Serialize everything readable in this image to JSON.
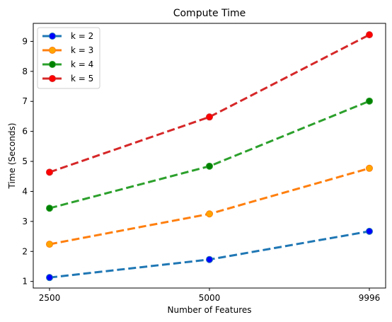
{
  "chart_data": {
    "type": "line",
    "title": "Compute Time",
    "xlabel": "Number of Features",
    "ylabel": "Time (Seconds)",
    "x": [
      "2500",
      "5000",
      "9996"
    ],
    "yticks": [
      1,
      2,
      3,
      4,
      5,
      6,
      7,
      8,
      9
    ],
    "ylim": [
      0.78,
      9.6
    ],
    "grid": false,
    "legend_position": "top-left",
    "series": [
      {
        "name": "k = 2",
        "color": "#1f77b4",
        "marker_face": "#0000ff",
        "values": [
          1.13,
          1.73,
          2.67
        ]
      },
      {
        "name": "k = 3",
        "color": "#ff7f0e",
        "marker_face": "#ffa500",
        "values": [
          2.24,
          3.25,
          4.77
        ]
      },
      {
        "name": "k = 4",
        "color": "#2ca02c",
        "marker_face": "#008000",
        "values": [
          3.44,
          4.84,
          7.01
        ]
      },
      {
        "name": "k = 5",
        "color": "#d62728",
        "marker_face": "#ff0000",
        "values": [
          4.64,
          6.48,
          9.22
        ]
      }
    ]
  }
}
